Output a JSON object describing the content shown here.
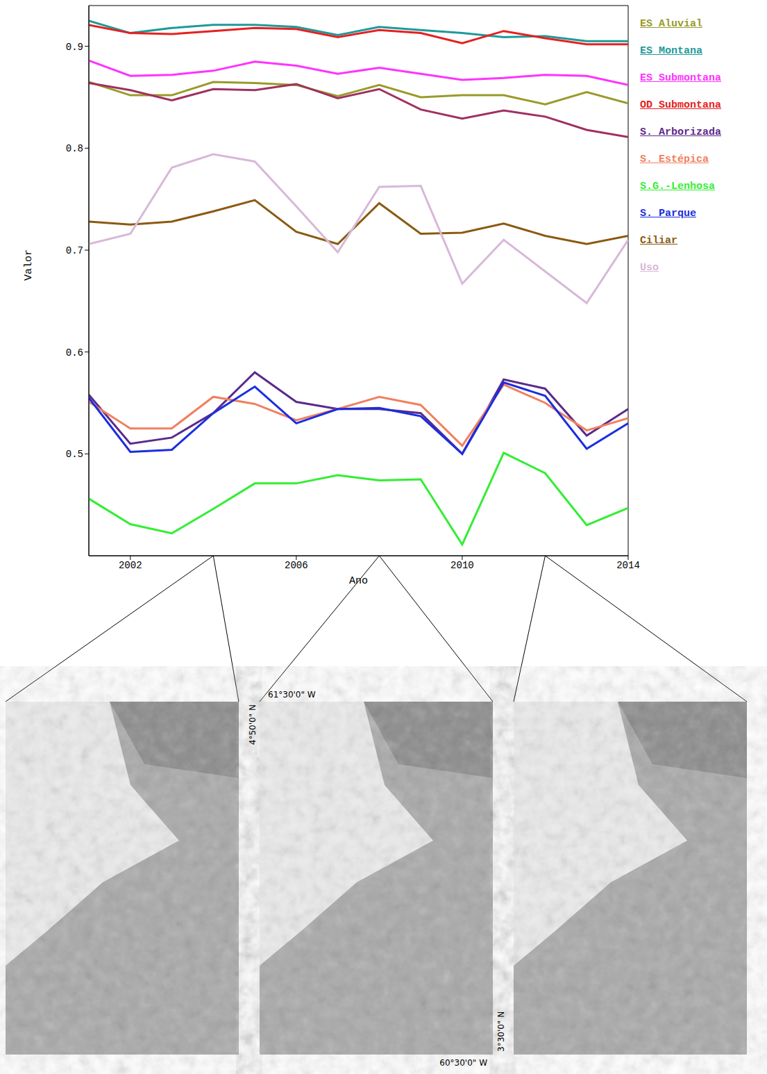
{
  "chart_data": {
    "type": "line",
    "x_label": "Ano",
    "y_label": "Valor",
    "x": [
      2001,
      2002,
      2003,
      2004,
      2005,
      2006,
      2007,
      2008,
      2009,
      2010,
      2011,
      2012,
      2013,
      2014
    ],
    "xlim": [
      2001,
      2014
    ],
    "xticks": [
      2002,
      2006,
      2010,
      2014
    ],
    "ylim": [
      0.4,
      0.94
    ],
    "yticks": [
      0.5,
      0.6,
      0.7,
      0.8,
      0.9
    ],
    "grid": false,
    "legend": "right",
    "series": [
      {
        "name": "ES Aluvial",
        "color": "#9a9a2a",
        "values": [
          0.865,
          0.852,
          0.852,
          0.865,
          0.864,
          0.862,
          0.851,
          0.862,
          0.85,
          0.852,
          0.852,
          0.843,
          0.855,
          0.844
        ]
      },
      {
        "name": "ES Montana",
        "color": "#1e9a9a",
        "values": [
          0.925,
          0.913,
          0.918,
          0.921,
          0.921,
          0.919,
          0.911,
          0.919,
          0.916,
          0.913,
          0.909,
          0.91,
          0.905,
          0.905
        ]
      },
      {
        "name": "ES Submontana",
        "color": "#ff33ff",
        "values": [
          0.886,
          0.871,
          0.872,
          0.876,
          0.885,
          0.881,
          0.873,
          0.879,
          0.873,
          0.867,
          0.869,
          0.872,
          0.871,
          0.862
        ]
      },
      {
        "name": "OD Submontana",
        "color": "#e62020",
        "values": [
          0.921,
          0.913,
          0.912,
          0.915,
          0.918,
          0.917,
          0.909,
          0.916,
          0.913,
          0.903,
          0.915,
          0.908,
          0.902,
          0.902
        ]
      },
      {
        "name": "S. Arborizada",
        "color": "#5b2a8c",
        "values": [
          0.558,
          0.51,
          0.516,
          0.54,
          0.58,
          0.551,
          0.544,
          0.544,
          0.54,
          0.5,
          0.573,
          0.564,
          0.518,
          0.544
        ]
      },
      {
        "name": "S. Estépica",
        "color": "#f08060",
        "values": [
          0.551,
          0.525,
          0.525,
          0.556,
          0.549,
          0.533,
          0.544,
          0.556,
          0.548,
          0.508,
          0.568,
          0.55,
          0.523,
          0.535
        ]
      },
      {
        "name": "S.G.-Lenhosa",
        "color": "#33ee33",
        "values": [
          0.456,
          0.431,
          0.422,
          0.446,
          0.471,
          0.471,
          0.479,
          0.474,
          0.475,
          0.411,
          0.501,
          0.481,
          0.43,
          0.447
        ]
      },
      {
        "name": "S. Parque",
        "color": "#1a2ee0",
        "values": [
          0.555,
          0.502,
          0.504,
          0.54,
          0.566,
          0.53,
          0.544,
          0.545,
          0.537,
          0.5,
          0.57,
          0.557,
          0.505,
          0.53
        ]
      },
      {
        "name": "Ciliar",
        "color": "#8b5a10",
        "values": [
          0.728,
          0.725,
          0.728,
          0.738,
          0.749,
          0.718,
          0.706,
          0.746,
          0.716,
          0.717,
          0.726,
          0.714,
          0.706,
          0.714
        ]
      },
      {
        "name": "Uso",
        "color": "#d8b8d8",
        "values": [
          0.706,
          0.716,
          0.781,
          0.794,
          0.787,
          0.743,
          0.698,
          0.762,
          0.763,
          0.667,
          0.71,
          0.679,
          0.648,
          0.71
        ]
      },
      {
        "name": null,
        "color": "#a03060",
        "values": [
          0.864,
          0.857,
          0.847,
          0.858,
          0.857,
          0.863,
          0.849,
          0.858,
          0.838,
          0.829,
          0.837,
          0.831,
          0.818,
          0.811
        ]
      }
    ]
  },
  "maps": {
    "years": [
      2004,
      2008,
      2012
    ],
    "coordinates": {
      "north": "4°50'0\" N",
      "south": "3°30'0\" N",
      "west": "61°30'0\" W",
      "east": "60°30'0\" W"
    }
  }
}
